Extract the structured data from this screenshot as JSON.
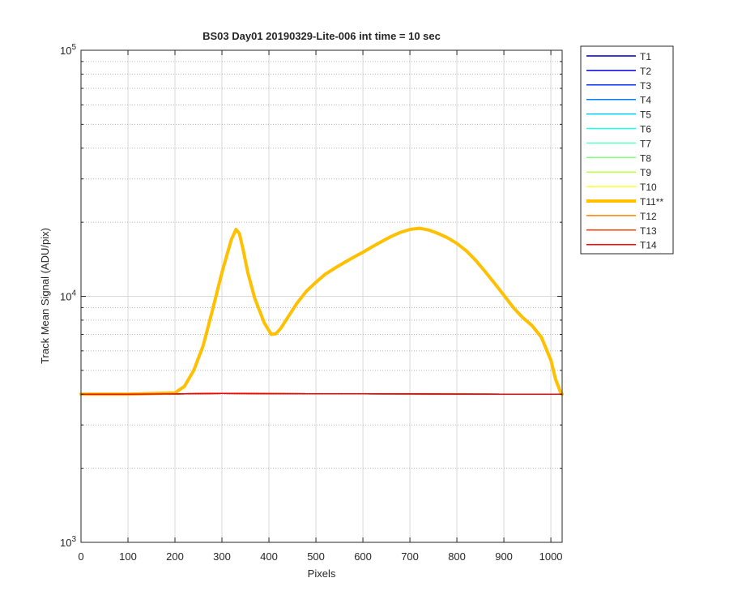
{
  "chart_data": {
    "type": "line",
    "title": "BS03 Day01 20190329-Lite-006 int time = 10 sec",
    "xlabel": "Pixels",
    "ylabel": "Track Mean Signal (ADU/pix)",
    "xlim": [
      0,
      1024
    ],
    "ylim": [
      1000,
      100000
    ],
    "yscale": "log",
    "grid": true,
    "legend_position": "outside-right-top",
    "x_ticks": [
      0,
      100,
      200,
      300,
      400,
      500,
      600,
      700,
      800,
      900,
      1000
    ],
    "y_ticks": [
      {
        "value": 1000,
        "base": "10",
        "exp": "3"
      },
      {
        "value": 10000,
        "base": "10",
        "exp": "4"
      },
      {
        "value": 100000,
        "base": "10",
        "exp": "5"
      }
    ],
    "flat_x": [
      0,
      100,
      200,
      300,
      400,
      500,
      600,
      700,
      800,
      900,
      1024
    ],
    "flat_y": [
      4000,
      4000,
      4010,
      4030,
      4020,
      4015,
      4015,
      4010,
      4005,
      4000,
      4000
    ],
    "series": [
      {
        "name": "T1",
        "color": "#00008f",
        "highlight": false
      },
      {
        "name": "T2",
        "color": "#0000df",
        "highlight": false
      },
      {
        "name": "T3",
        "color": "#0030ff",
        "highlight": false
      },
      {
        "name": "T4",
        "color": "#0080ff",
        "highlight": false
      },
      {
        "name": "T5",
        "color": "#00c8ff",
        "highlight": false
      },
      {
        "name": "T6",
        "color": "#20ffdf",
        "highlight": false
      },
      {
        "name": "T7",
        "color": "#60ffc0",
        "highlight": false
      },
      {
        "name": "T8",
        "color": "#80ff80",
        "highlight": false
      },
      {
        "name": "T9",
        "color": "#c0ff40",
        "highlight": false
      },
      {
        "name": "T10",
        "color": "#ffff30",
        "highlight": false
      },
      {
        "name": "T11**",
        "color": "#ffc000",
        "highlight": true,
        "x": [
          0,
          100,
          200,
          220,
          240,
          260,
          280,
          300,
          320,
          330,
          337,
          345,
          355,
          370,
          390,
          405,
          415,
          425,
          440,
          460,
          480,
          500,
          520,
          540,
          560,
          580,
          600,
          620,
          640,
          660,
          680,
          700,
          720,
          740,
          760,
          780,
          800,
          820,
          840,
          860,
          880,
          900,
          920,
          940,
          960,
          980,
          1000,
          1010,
          1020,
          1024
        ],
        "y": [
          4000,
          4000,
          4050,
          4300,
          5000,
          6300,
          8800,
          12500,
          17000,
          18700,
          18000,
          15500,
          12500,
          9800,
          7800,
          7000,
          7050,
          7400,
          8200,
          9400,
          10500,
          11400,
          12300,
          13000,
          13700,
          14400,
          15100,
          15900,
          16700,
          17500,
          18200,
          18700,
          18900,
          18600,
          18000,
          17300,
          16400,
          15300,
          14000,
          12600,
          11300,
          10100,
          9000,
          8200,
          7600,
          6800,
          5500,
          4600,
          4100,
          4000
        ]
      },
      {
        "name": "T12",
        "color": "#ff8000",
        "highlight": false
      },
      {
        "name": "T13",
        "color": "#ff4000",
        "highlight": false
      },
      {
        "name": "T14",
        "color": "#ff0000",
        "highlight": false
      }
    ]
  }
}
